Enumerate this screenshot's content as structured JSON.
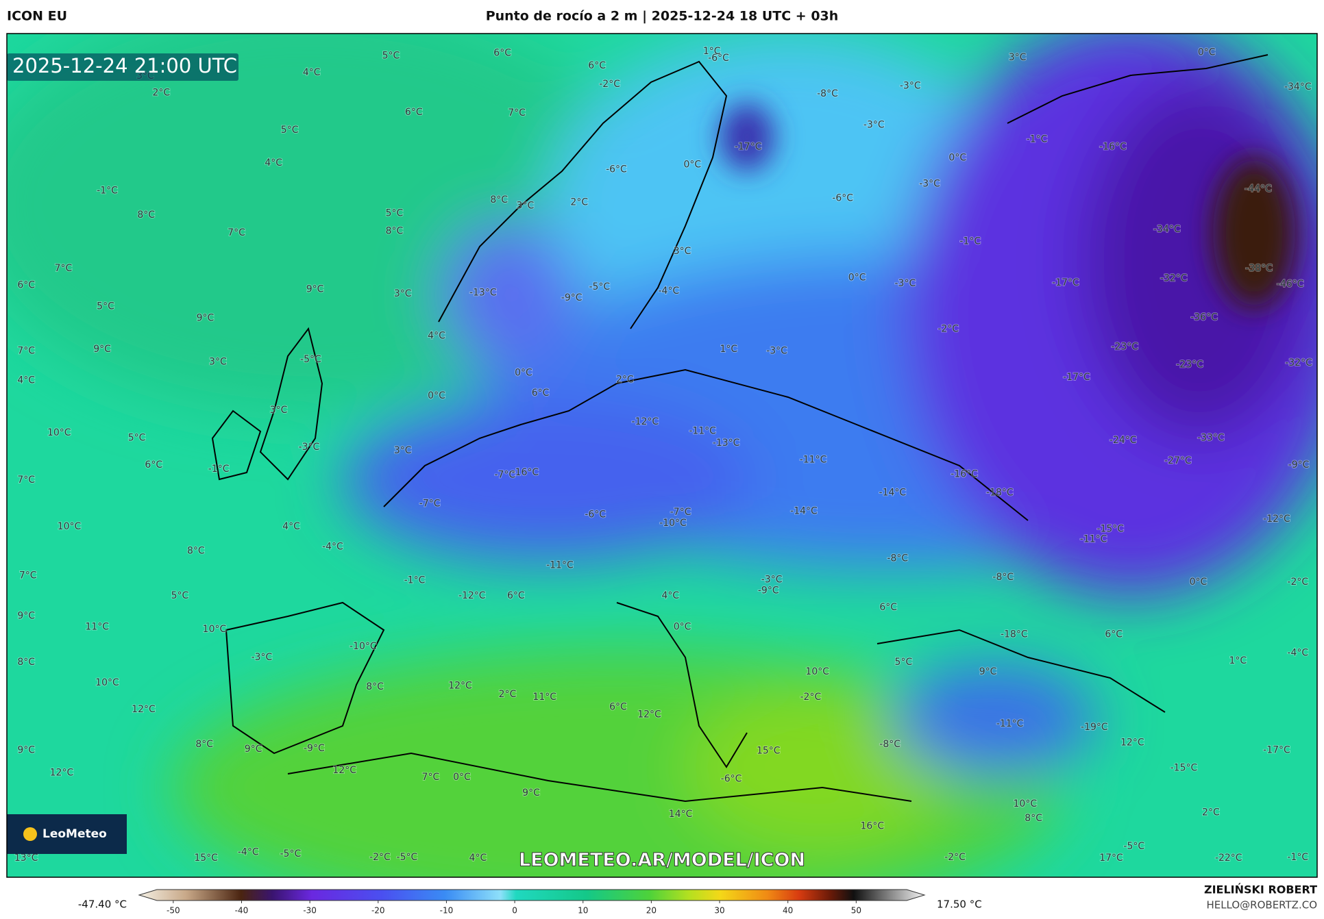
{
  "header": {
    "model": "ICON EU",
    "title": "Punto de rocío a 2 m | 2025-12-24 18 UTC + 03h"
  },
  "map": {
    "timestamp": "2025-12-24 21:00 UTC",
    "watermark": "LEOMETEO.AR/MODEL/ICON",
    "logo": "LeoMeteo",
    "labels": [
      "5°C",
      "6°C",
      "4°C",
      "3°C",
      "2°C",
      "6°C",
      "7°C",
      "5°C",
      "4°C",
      "-1°C",
      "8°C",
      "5°C",
      "8°C",
      "7°C",
      "7°C",
      "6°C",
      "9°C",
      "3°C",
      "5°C",
      "9°C",
      "4°C",
      "7°C",
      "9°C",
      "3°C",
      "-5°C",
      "4°C",
      "0°C",
      "3°C",
      "10°C",
      "5°C",
      "-3°C",
      "3°C",
      "6°C",
      "-1°C",
      "7°C",
      "-7°C",
      "10°C",
      "4°C",
      "-4°C",
      "8°C",
      "7°C",
      "-1°C",
      "5°C",
      "9°C",
      "11°C",
      "10°C",
      "-3°C",
      "-10°C",
      "8°C",
      "10°C",
      "8°C",
      "12°C",
      "2°C",
      "11°C",
      "12°C",
      "6°C",
      "12°C",
      "8°C",
      "9°C",
      "-9°C",
      "9°C",
      "12°C",
      "12°C",
      "7°C",
      "0°C",
      "9°C",
      "14°C",
      "16°C",
      "15°C",
      "-4°C",
      "-5°C",
      "-2°C",
      "-5°C",
      "4°C",
      "6°C",
      "-2°C",
      "-6°C",
      "2°C",
      "8°C",
      "3°C",
      "-13°C",
      "-9°C",
      "-5°C",
      "-4°C",
      "3°C",
      "0°C",
      "-17°C",
      "-6°C",
      "1°C",
      "-8°C",
      "-3°C",
      "3°C",
      "0°C",
      "-34°C",
      "-3°C",
      "-1°C",
      "-16°C",
      "0°C",
      "-3°C",
      "-6°C",
      "-1°C",
      "-44°C",
      "-34°C",
      "-38°C",
      "-46°C",
      "-32°C",
      "-17°C",
      "0°C",
      "-3°C",
      "-36°C",
      "-2°C",
      "1°C",
      "-3°C",
      "-23°C",
      "-23°C",
      "-32°C",
      "0°C",
      "2°C",
      "-17°C",
      "6°C",
      "-12°C",
      "-11°C",
      "-13°C",
      "-24°C",
      "-33°C",
      "-11°C",
      "-27°C",
      "-9°C",
      "-7°C",
      "-16°C",
      "-16°C",
      "-14°C",
      "-18°C",
      "-6°C",
      "-7°C",
      "-14°C",
      "-10°C",
      "-12°C",
      "-15°C",
      "-11°C",
      "-11°C",
      "-8°C",
      "-3°C",
      "-8°C",
      "0°C",
      "-2°C",
      "-9°C",
      "-12°C",
      "6°C",
      "4°C",
      "6°C",
      "0°C",
      "-18°C",
      "6°C",
      "1°C",
      "-4°C",
      "5°C",
      "10°C",
      "9°C",
      "-2°C",
      "-11°C",
      "-19°C",
      "12°C",
      "-8°C",
      "15°C",
      "-17°C",
      "-15°C",
      "-6°C",
      "10°C",
      "8°C",
      "2°C",
      "-5°C",
      "-2°C",
      "17°C",
      "-22°C",
      "-1°C",
      "13°C"
    ]
  },
  "colorbar": {
    "min_label": "-47.40 °C",
    "max_label": "17.50 °C",
    "range": [
      -55,
      60
    ],
    "ticks": [
      -50,
      -40,
      -30,
      -20,
      -10,
      0,
      10,
      20,
      30,
      40,
      50
    ]
  },
  "footer": {
    "author": "ZIELIŃSKI ROBERT",
    "email": "HELLO@ROBERTZ.CO"
  }
}
